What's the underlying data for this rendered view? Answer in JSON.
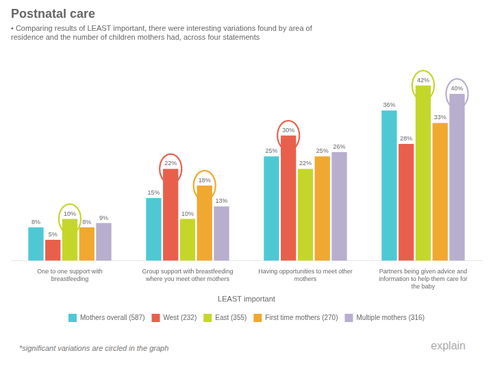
{
  "chart_data": {
    "type": "bar",
    "title": "Postnatal care",
    "subtitle": [
      "• Comparing results of LEAST important, there were interesting variations found by area of",
      "residence and the number of children mothers had, across four statements"
    ],
    "xlabel": "LEAST important",
    "categories": [
      "One to one support with\nbreastfeeding",
      "Group support with breastfeeding\nwhere you meet other mothers",
      "Having opportunities to meet other\nmothers",
      "Partners being given advice and\ninformation to help them care for\nthe baby"
    ],
    "series": [
      {
        "name": "Mothers overall (587)",
        "color": "#4ec9d4",
        "values": [
          8,
          15,
          25,
          36
        ],
        "value_labels": [
          "8%",
          "15%",
          "25%",
          "36%"
        ],
        "circled": [
          false,
          false,
          false,
          false
        ]
      },
      {
        "name": "West (232)",
        "color": "#e8604c",
        "values": [
          5,
          22,
          30,
          28
        ],
        "value_labels": [
          "5%",
          "22%",
          "30%",
          "28%"
        ],
        "circled": [
          false,
          true,
          true,
          false
        ]
      },
      {
        "name": "East (355)",
        "color": "#c5d62a",
        "values": [
          10,
          10,
          22,
          42
        ],
        "value_labels": [
          "10%",
          "10%",
          "22%",
          "42%"
        ],
        "circled": [
          true,
          false,
          false,
          true
        ]
      },
      {
        "name": "First time mothers (270)",
        "color": "#f0a830",
        "values": [
          8,
          18,
          25,
          33
        ],
        "value_labels": [
          "8%",
          "18%",
          "25%",
          "33%"
        ],
        "circled": [
          false,
          true,
          false,
          false
        ]
      },
      {
        "name": "Multiple mothers (316)",
        "color": "#b8aece",
        "values": [
          9,
          13,
          26,
          40
        ],
        "value_labels": [
          "9%",
          "13%",
          "26%",
          "40%"
        ],
        "circled": [
          false,
          false,
          false,
          true
        ]
      }
    ],
    "ylim": [
      0,
      50
    ],
    "grid": false,
    "legend": "bottom",
    "data_labels": true,
    "tick_labels": "x",
    "footnote": "*significant variations are circled in the graph",
    "annotations": [
      "explain"
    ]
  }
}
